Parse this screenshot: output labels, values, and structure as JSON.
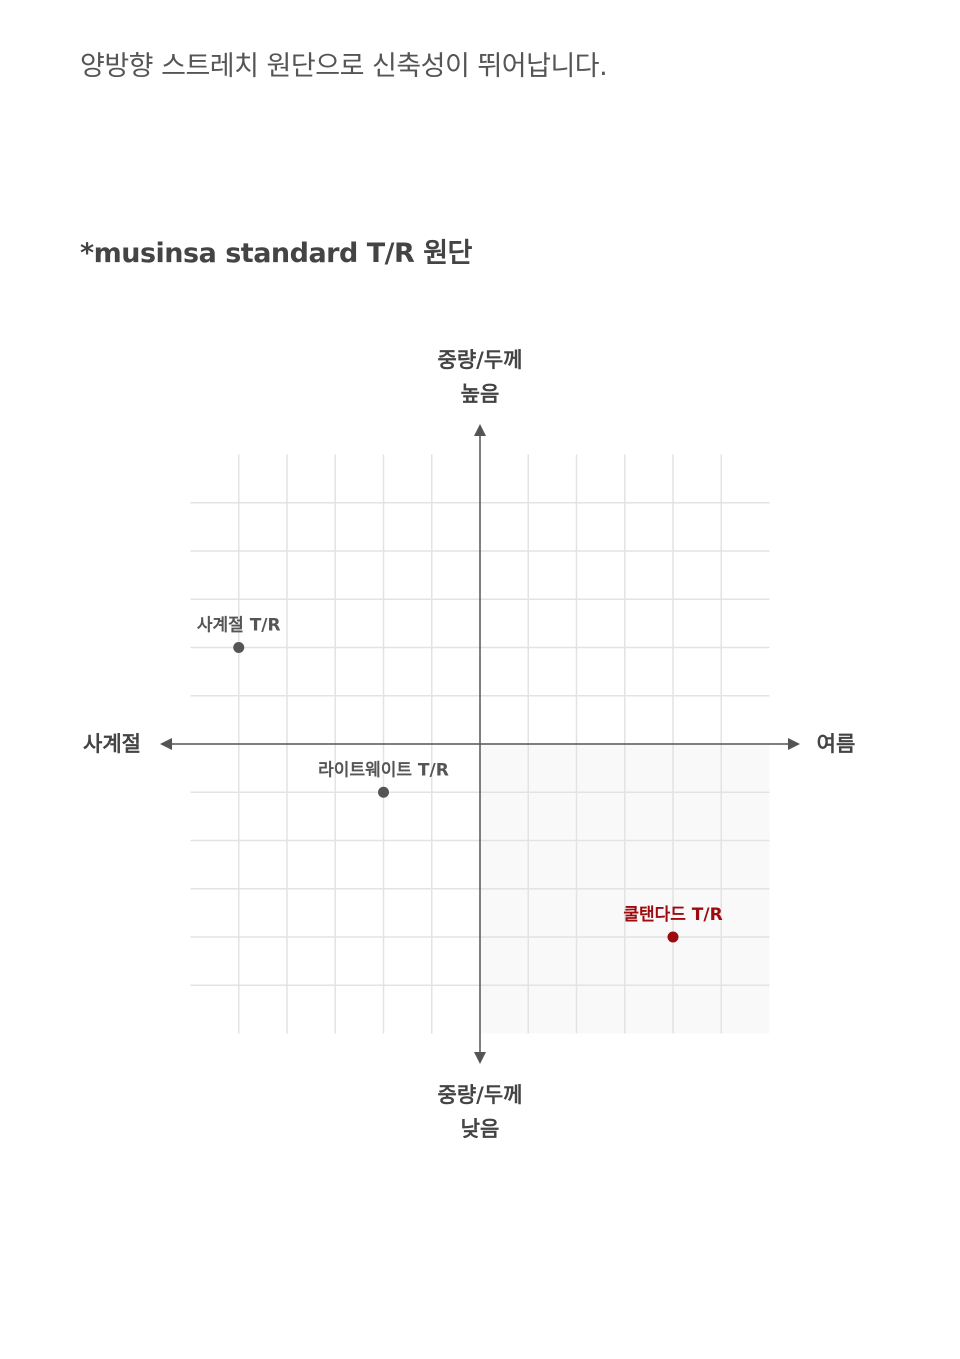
{
  "intro_text": "양방향 스트레치 원단으로 신축성이 뛰어납니다.",
  "heading": "*musinsa standard T/R 원단",
  "chart_data": {
    "type": "scatter",
    "title": "",
    "xlim": [
      -6,
      6
    ],
    "ylim": [
      -6,
      6
    ],
    "grid": true,
    "axis_labels": {
      "top": [
        "중량/두께",
        "높음"
      ],
      "bottom": [
        "중량/두께",
        "낮음"
      ],
      "left": "사계절",
      "right": "여름"
    },
    "highlighted_quadrant": "bottom-right",
    "points": [
      {
        "label": "사계절 T/R",
        "x": -5,
        "y": 2,
        "color": "#555555"
      },
      {
        "label": "라이트웨이트 T/R",
        "x": -2,
        "y": -1,
        "color": "#555555"
      },
      {
        "label": "쿨탠다드 T/R",
        "x": 4,
        "y": -4,
        "color": "#9e0b0f"
      }
    ]
  }
}
